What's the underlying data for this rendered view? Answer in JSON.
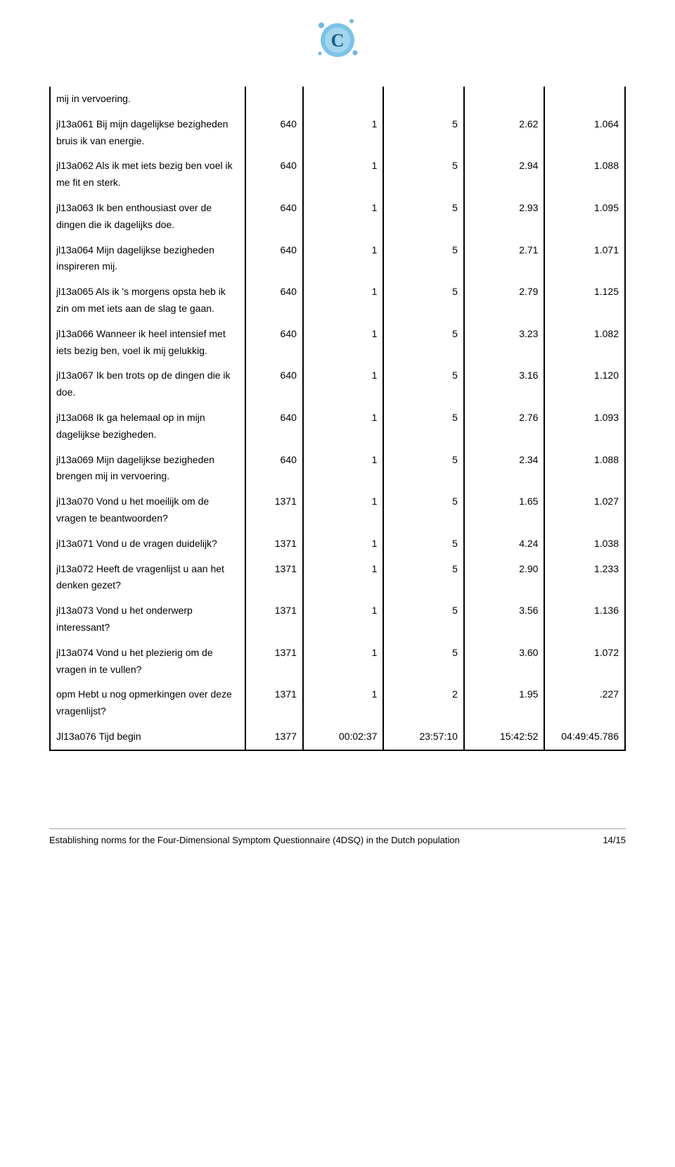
{
  "logo": {
    "letter": "C",
    "bg_color": "#5aa7d6",
    "accent_color": "#2b7bb0"
  },
  "table": {
    "rows": [
      {
        "desc": "mij in vervoering.",
        "n": "",
        "min": "",
        "max": "",
        "mean": "",
        "sd": ""
      },
      {
        "desc": "jl13a061 Bij mijn dagelijkse bezigheden bruis ik van energie.",
        "n": "640",
        "min": "1",
        "max": "5",
        "mean": "2.62",
        "sd": "1.064"
      },
      {
        "desc": "jl13a062 Als ik met iets bezig ben voel ik me fit en sterk.",
        "n": "640",
        "min": "1",
        "max": "5",
        "mean": "2.94",
        "sd": "1.088"
      },
      {
        "desc": "jl13a063 Ik ben enthousiast over de dingen die ik dagelijks doe.",
        "n": "640",
        "min": "1",
        "max": "5",
        "mean": "2.93",
        "sd": "1.095"
      },
      {
        "desc": "jl13a064 Mijn dagelijkse bezigheden inspireren mij.",
        "n": "640",
        "min": "1",
        "max": "5",
        "mean": "2.71",
        "sd": "1.071"
      },
      {
        "desc": "jl13a065 Als ik 's morgens opsta heb ik zin om met iets aan de slag te gaan.",
        "n": "640",
        "min": "1",
        "max": "5",
        "mean": "2.79",
        "sd": "1.125"
      },
      {
        "desc": "jl13a066 Wanneer ik heel intensief met iets bezig ben, voel ik mij gelukkig.",
        "n": "640",
        "min": "1",
        "max": "5",
        "mean": "3.23",
        "sd": "1.082"
      },
      {
        "desc": "jl13a067 Ik ben trots op de dingen die ik doe.",
        "n": "640",
        "min": "1",
        "max": "5",
        "mean": "3.16",
        "sd": "1.120"
      },
      {
        "desc": "jl13a068 Ik ga helemaal op in mijn dagelijkse bezigheden.",
        "n": "640",
        "min": "1",
        "max": "5",
        "mean": "2.76",
        "sd": "1.093"
      },
      {
        "desc": "jl13a069 Mijn dagelijkse bezigheden brengen mij in vervoering.",
        "n": "640",
        "min": "1",
        "max": "5",
        "mean": "2.34",
        "sd": "1.088"
      },
      {
        "desc": "jl13a070 Vond u het moeilijk om de vragen te beantwoorden?",
        "n": "1371",
        "min": "1",
        "max": "5",
        "mean": "1.65",
        "sd": "1.027"
      },
      {
        "desc": "jl13a071 Vond u de vragen duidelijk?",
        "n": "1371",
        "min": "1",
        "max": "5",
        "mean": "4.24",
        "sd": "1.038"
      },
      {
        "desc": "jl13a072 Heeft de vragenlijst u aan het denken gezet?",
        "n": "1371",
        "min": "1",
        "max": "5",
        "mean": "2.90",
        "sd": "1.233"
      },
      {
        "desc": "jl13a073 Vond u het onderwerp interessant?",
        "n": "1371",
        "min": "1",
        "max": "5",
        "mean": "3.56",
        "sd": "1.136"
      },
      {
        "desc": "jl13a074 Vond u het plezierig om de vragen in te vullen?",
        "n": "1371",
        "min": "1",
        "max": "5",
        "mean": "3.60",
        "sd": "1.072"
      },
      {
        "desc": "opm Hebt u nog opmerkingen over deze vragenlijst?",
        "n": "1371",
        "min": "1",
        "max": "2",
        "mean": "1.95",
        "sd": ".227"
      },
      {
        "desc": "Jl13a076 Tijd begin",
        "n": "1377",
        "min": "00:02:37",
        "max": "23:57:10",
        "mean": "15:42:52",
        "sd": "04:49:45.786"
      }
    ]
  },
  "footer": {
    "title": "Establishing norms for the Four-Dimensional Symptom Questionnaire (4DSQ) in the Dutch population",
    "page": "14/15"
  }
}
